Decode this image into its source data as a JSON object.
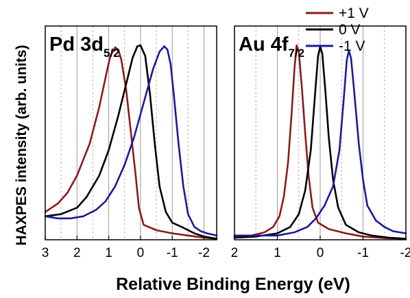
{
  "chart_data": {
    "type": "line",
    "ylabel": "HAXPES intensity (arb. units)",
    "xlabel": "Relative Binding Energy (eV)",
    "legend": {
      "placement": "top-right",
      "entries": [
        {
          "label": "+1 V",
          "color": "#8b1a1a"
        },
        {
          "label": "0 V",
          "color": "#000000"
        },
        {
          "label": "-1 V",
          "color": "#1a1a9c"
        }
      ]
    },
    "panels": [
      {
        "name": "Pd 3d5/2",
        "label_main": "Pd 3d",
        "label_sub": "5/2",
        "x_reversed": true,
        "xlim": [
          3.0,
          -2.4
        ],
        "ylim": [
          0,
          1
        ],
        "xticks": [
          3,
          2,
          1,
          0,
          -1,
          -2
        ],
        "xtick_labels": [
          "3",
          "2",
          "1",
          "0",
          "-1",
          "-2"
        ],
        "grid": {
          "solid": [
            3,
            2,
            1,
            0,
            -1,
            -2
          ],
          "dashed": [
            2.5,
            1.5,
            0.5,
            -0.5,
            -1.5
          ]
        },
        "series": [
          {
            "name": "+1 V",
            "color": "#8b1a1a",
            "points": [
              [
                3.0,
                0.13
              ],
              [
                2.6,
                0.17
              ],
              [
                2.3,
                0.22
              ],
              [
                2.0,
                0.3
              ],
              [
                1.6,
                0.45
              ],
              [
                1.3,
                0.62
              ],
              [
                1.1,
                0.76
              ],
              [
                0.95,
                0.86
              ],
              [
                0.8,
                0.9
              ],
              [
                0.7,
                0.89
              ],
              [
                0.6,
                0.84
              ],
              [
                0.45,
                0.7
              ],
              [
                0.3,
                0.5
              ],
              [
                0.15,
                0.3
              ],
              [
                0.05,
                0.15
              ],
              [
                -0.1,
                0.07
              ],
              [
                -0.5,
                0.045
              ],
              [
                -1.0,
                0.03
              ],
              [
                -1.5,
                0.02
              ],
              [
                -2.0,
                0.01
              ],
              [
                -2.4,
                0.005
              ]
            ]
          },
          {
            "name": "0 V",
            "color": "#000000",
            "points": [
              [
                3.0,
                0.11
              ],
              [
                2.5,
                0.12
              ],
              [
                2.0,
                0.15
              ],
              [
                1.7,
                0.2
              ],
              [
                1.3,
                0.3
              ],
              [
                1.0,
                0.42
              ],
              [
                0.7,
                0.58
              ],
              [
                0.45,
                0.73
              ],
              [
                0.25,
                0.85
              ],
              [
                0.1,
                0.905
              ],
              [
                0.0,
                0.91
              ],
              [
                -0.15,
                0.86
              ],
              [
                -0.3,
                0.68
              ],
              [
                -0.45,
                0.45
              ],
              [
                -0.6,
                0.25
              ],
              [
                -0.8,
                0.13
              ],
              [
                -1.0,
                0.08
              ],
              [
                -1.3,
                0.06
              ],
              [
                -1.7,
                0.03
              ],
              [
                -2.0,
                0.015
              ],
              [
                -2.4,
                0.005
              ]
            ]
          },
          {
            "name": "-1 V",
            "color": "#1a1a9c",
            "points": [
              [
                3.0,
                0.11
              ],
              [
                2.6,
                0.1
              ],
              [
                2.2,
                0.1
              ],
              [
                1.8,
                0.11
              ],
              [
                1.4,
                0.14
              ],
              [
                1.1,
                0.18
              ],
              [
                0.8,
                0.25
              ],
              [
                0.5,
                0.35
              ],
              [
                0.2,
                0.48
              ],
              [
                -0.1,
                0.64
              ],
              [
                -0.4,
                0.8
              ],
              [
                -0.6,
                0.88
              ],
              [
                -0.75,
                0.905
              ],
              [
                -0.85,
                0.89
              ],
              [
                -0.95,
                0.82
              ],
              [
                -1.05,
                0.68
              ],
              [
                -1.2,
                0.45
              ],
              [
                -1.35,
                0.25
              ],
              [
                -1.5,
                0.12
              ],
              [
                -1.7,
                0.06
              ],
              [
                -1.9,
                0.04
              ],
              [
                -2.1,
                0.03
              ],
              [
                -2.4,
                0.02
              ]
            ]
          }
        ]
      },
      {
        "name": "Au 4f7/2",
        "label_main": "Au 4f",
        "label_sub": "7/2",
        "x_reversed": true,
        "xlim": [
          2.0,
          -2.0
        ],
        "ylim": [
          0,
          1
        ],
        "xticks": [
          2,
          1,
          0,
          -1,
          -2
        ],
        "xtick_labels": [
          "2",
          "1",
          "0",
          "-1",
          "-2"
        ],
        "grid": {
          "solid": [
            2,
            1,
            0,
            -1,
            -2
          ],
          "dashed": [
            1.5,
            0.5,
            -0.5,
            -1.5
          ]
        },
        "series": [
          {
            "name": "+1 V",
            "color": "#8b1a1a",
            "points": [
              [
                2.0,
                0.015
              ],
              [
                1.6,
                0.02
              ],
              [
                1.3,
                0.035
              ],
              [
                1.1,
                0.06
              ],
              [
                0.95,
                0.11
              ],
              [
                0.85,
                0.2
              ],
              [
                0.75,
                0.36
              ],
              [
                0.67,
                0.58
              ],
              [
                0.6,
                0.8
              ],
              [
                0.55,
                0.91
              ],
              [
                0.5,
                0.88
              ],
              [
                0.43,
                0.72
              ],
              [
                0.35,
                0.5
              ],
              [
                0.27,
                0.3
              ],
              [
                0.18,
                0.15
              ],
              [
                0.05,
                0.08
              ],
              [
                -0.2,
                0.05
              ],
              [
                -0.6,
                0.03
              ],
              [
                -1.0,
                0.015
              ],
              [
                -1.5,
                0.008
              ],
              [
                -2.0,
                0.005
              ]
            ]
          },
          {
            "name": "0 V",
            "color": "#000000",
            "points": [
              [
                2.0,
                0.01
              ],
              [
                1.5,
                0.015
              ],
              [
                1.0,
                0.03
              ],
              [
                0.7,
                0.06
              ],
              [
                0.5,
                0.12
              ],
              [
                0.35,
                0.23
              ],
              [
                0.22,
                0.42
              ],
              [
                0.12,
                0.68
              ],
              [
                0.05,
                0.86
              ],
              [
                0.0,
                0.905
              ],
              [
                -0.05,
                0.87
              ],
              [
                -0.12,
                0.7
              ],
              [
                -0.2,
                0.48
              ],
              [
                -0.3,
                0.28
              ],
              [
                -0.42,
                0.15
              ],
              [
                -0.6,
                0.07
              ],
              [
                -0.9,
                0.035
              ],
              [
                -1.2,
                0.02
              ],
              [
                -1.6,
                0.01
              ],
              [
                -2.0,
                0.005
              ]
            ]
          },
          {
            "name": "-1 V",
            "color": "#1a1a9c",
            "points": [
              [
                2.0,
                0.02
              ],
              [
                1.5,
                0.02
              ],
              [
                1.0,
                0.02
              ],
              [
                0.6,
                0.035
              ],
              [
                0.3,
                0.06
              ],
              [
                0.1,
                0.1
              ],
              [
                -0.1,
                0.16
              ],
              [
                -0.3,
                0.25
              ],
              [
                -0.45,
                0.42
              ],
              [
                -0.55,
                0.66
              ],
              [
                -0.62,
                0.84
              ],
              [
                -0.67,
                0.885
              ],
              [
                -0.72,
                0.85
              ],
              [
                -0.8,
                0.68
              ],
              [
                -0.9,
                0.45
              ],
              [
                -1.0,
                0.28
              ],
              [
                -1.1,
                0.16
              ],
              [
                -1.3,
                0.09
              ],
              [
                -1.5,
                0.06
              ],
              [
                -1.7,
                0.04
              ],
              [
                -2.0,
                0.03
              ]
            ]
          }
        ]
      }
    ]
  }
}
